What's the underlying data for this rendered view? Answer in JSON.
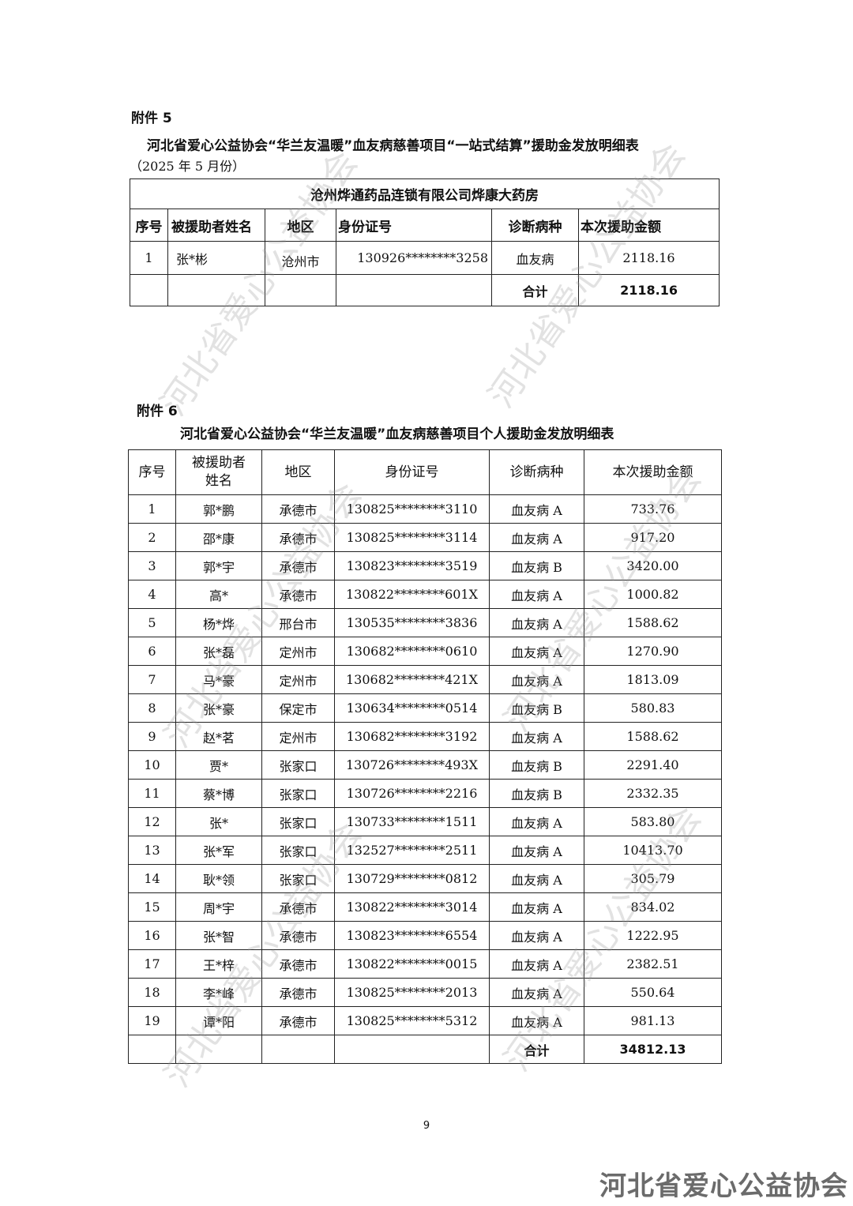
{
  "annex5": {
    "label": "附件 5",
    "title": "河北省爱心公益协会“华兰友温暖”血友病慈善项目“一站式结算”援助金发放明细表",
    "period": "（2025 年 5 月份）",
    "pharmacy": "沧州烨通药品连锁有限公司烨康大药房",
    "headers": [
      "序号",
      "被援助者姓名",
      "地区",
      "身份证号",
      "诊断病种",
      "本次援助金额"
    ],
    "rows": [
      {
        "no": "1",
        "name": "张*彬",
        "region": "沧州市",
        "id": "130926********3258",
        "disease": "血友病",
        "amount": "2118.16"
      }
    ],
    "total_label": "合计",
    "total": "2118.16"
  },
  "annex6": {
    "label": "附件 6",
    "title": "河北省爱心公益协会“华兰友温暖”血友病慈善项目个人援助金发放明细表",
    "headers": [
      "序号",
      "被援助者姓名",
      "地区",
      "身份证号",
      "诊断病种",
      "本次援助金额"
    ],
    "rows": [
      {
        "no": "1",
        "name": "郭*鹏",
        "region": "承德市",
        "id": "130825********3110",
        "disease": "血友病 A",
        "amount": "733.76"
      },
      {
        "no": "2",
        "name": "邵*康",
        "region": "承德市",
        "id": "130825********3114",
        "disease": "血友病 A",
        "amount": "917.20"
      },
      {
        "no": "3",
        "name": "郭*宇",
        "region": "承德市",
        "id": "130823********3519",
        "disease": "血友病 B",
        "amount": "3420.00"
      },
      {
        "no": "4",
        "name": "高*",
        "region": "承德市",
        "id": "130822********601X",
        "disease": "血友病 A",
        "amount": "1000.82"
      },
      {
        "no": "5",
        "name": "杨*烨",
        "region": "邢台市",
        "id": "130535********3836",
        "disease": "血友病 A",
        "amount": "1588.62"
      },
      {
        "no": "6",
        "name": "张*磊",
        "region": "定州市",
        "id": "130682********0610",
        "disease": "血友病 A",
        "amount": "1270.90"
      },
      {
        "no": "7",
        "name": "马*豪",
        "region": "定州市",
        "id": "130682********421X",
        "disease": "血友病 A",
        "amount": "1813.09"
      },
      {
        "no": "8",
        "name": "张*豪",
        "region": "保定市",
        "id": "130634********0514",
        "disease": "血友病 B",
        "amount": "580.83"
      },
      {
        "no": "9",
        "name": "赵*茗",
        "region": "定州市",
        "id": "130682********3192",
        "disease": "血友病 A",
        "amount": "1588.62"
      },
      {
        "no": "10",
        "name": "贾*",
        "region": "张家口",
        "id": "130726********493X",
        "disease": "血友病 B",
        "amount": "2291.40"
      },
      {
        "no": "11",
        "name": "蔡*博",
        "region": "张家口",
        "id": "130726********2216",
        "disease": "血友病 B",
        "amount": "2332.35"
      },
      {
        "no": "12",
        "name": "张*",
        "region": "张家口",
        "id": "130733********1511",
        "disease": "血友病 A",
        "amount": "583.80"
      },
      {
        "no": "13",
        "name": "张*军",
        "region": "张家口",
        "id": "132527********2511",
        "disease": "血友病 A",
        "amount": "10413.70"
      },
      {
        "no": "14",
        "name": "耿*领",
        "region": "张家口",
        "id": "130729********0812",
        "disease": "血友病 A",
        "amount": "305.79"
      },
      {
        "no": "15",
        "name": "周*宇",
        "region": "承德市",
        "id": "130822********3014",
        "disease": "血友病 A",
        "amount": "834.02"
      },
      {
        "no": "16",
        "name": "张*智",
        "region": "承德市",
        "id": "130823********6554",
        "disease": "血友病 A",
        "amount": "1222.95"
      },
      {
        "no": "17",
        "name": "王*梓",
        "region": "承德市",
        "id": "130822********0015",
        "disease": "血友病 A",
        "amount": "2382.51"
      },
      {
        "no": "18",
        "name": "李*峰",
        "region": "承德市",
        "id": "130825********2013",
        "disease": "血友病 A",
        "amount": "550.64"
      },
      {
        "no": "19",
        "name": "谭*阳",
        "region": "承德市",
        "id": "130825********5312",
        "disease": "血友病 A",
        "amount": "981.13"
      }
    ],
    "total_label": "合计",
    "total": "34812.13"
  },
  "page_number": "9",
  "watermark": "河北省爱心公益协会",
  "logo_text": "河北省爱心公益协会"
}
